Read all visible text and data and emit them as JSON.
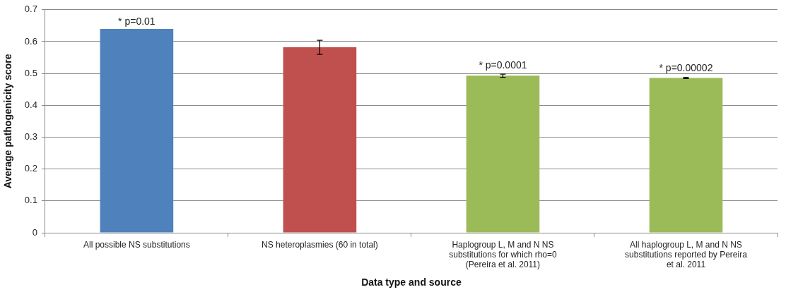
{
  "chart_data": {
    "type": "bar",
    "xlabel": "Data type and source",
    "ylabel": "Average pathogenicity score",
    "categories": [
      "All possible NS substitutions",
      "NS heteroplasmies (60 in total)",
      "Haplogroup L, M and N NS substitutions for which rho=0 (Pereira et al. 2011)",
      "All haplogroup L, M and N NS substitutions reported by Pereira et al. 2011"
    ],
    "values": [
      0.64,
      0.582,
      0.493,
      0.486
    ],
    "colors": [
      "#4f81bd",
      "#c0504d",
      "#9bbb59",
      "#9bbb59"
    ],
    "errors": [
      null,
      0.022,
      0.005,
      0.002
    ],
    "ylim": [
      0,
      0.7
    ],
    "yticks": [
      0,
      0.1,
      0.2,
      0.3,
      0.4,
      0.5,
      0.6,
      0.7
    ],
    "grid": "y",
    "annotations": [
      {
        "text": "* p=0.01",
        "x": "All possible NS substitutions",
        "y": 0.64
      },
      {
        "text": "* p=0.0001",
        "x": "Haplogroup L, M and N NS substitutions for which rho=0 (Pereira et al. 2011)",
        "y": 0.493
      },
      {
        "text": "* p=0.00002",
        "x": "All haplogroup L, M and N NS substitutions reported by Pereira et al. 2011",
        "y": 0.486
      }
    ]
  }
}
